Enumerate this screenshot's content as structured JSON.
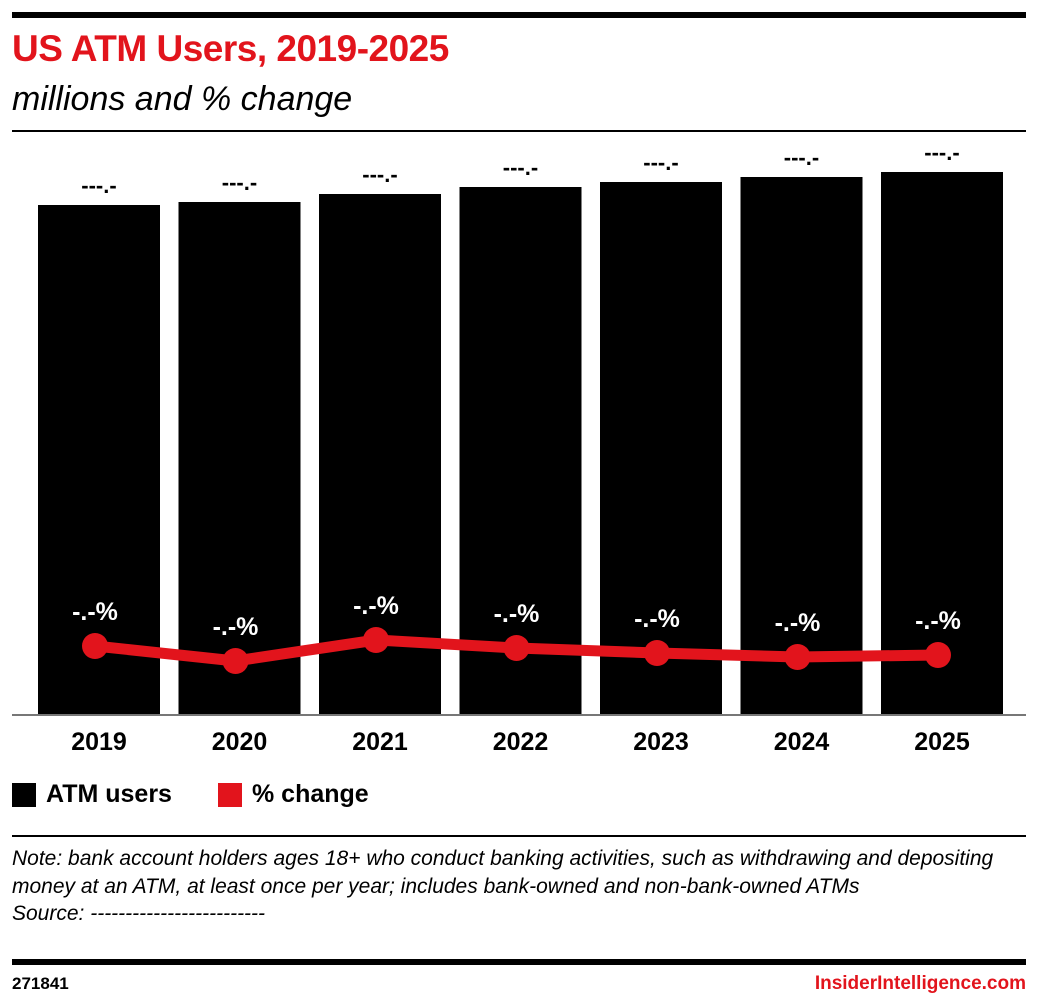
{
  "title": "US ATM Users, 2019-2025",
  "subtitle": "millions and % change",
  "chart_data": {
    "type": "bar",
    "categories": [
      "2019",
      "2020",
      "2021",
      "2022",
      "2023",
      "2024",
      "2025"
    ],
    "series": [
      {
        "name": "ATM users",
        "type": "bar",
        "color": "#000000",
        "values": [
          510,
          513,
          521,
          528,
          533,
          538,
          543
        ],
        "labels": [
          "---.-",
          "---.-",
          "---.-",
          "---.-",
          "---.-",
          "---.-",
          "---.-"
        ]
      },
      {
        "name": "% change",
        "type": "line",
        "color": "#e2141c",
        "values": [
          69,
          54,
          75,
          67,
          62,
          58,
          60
        ],
        "labels": [
          "-.-%",
          "-.-%",
          "-.-%",
          "-.-%",
          "-.-%",
          "-.-%",
          "-.-%"
        ]
      }
    ],
    "ylim": [
      0,
      543
    ],
    "grid": false,
    "legend_position": "bottom-left"
  },
  "legend": [
    {
      "label": "ATM users",
      "color": "#000000"
    },
    {
      "label": "% change",
      "color": "#e2141c"
    }
  ],
  "note": "Note: bank account holders ages 18+ who conduct banking activities, such as withdrawing and depositing money at an ATM, at least once per year; includes bank-owned and non-bank-owned ATMs",
  "source": "Source: -------------------------",
  "chart_id": "271841",
  "brand": "InsiderIntelligence.com"
}
